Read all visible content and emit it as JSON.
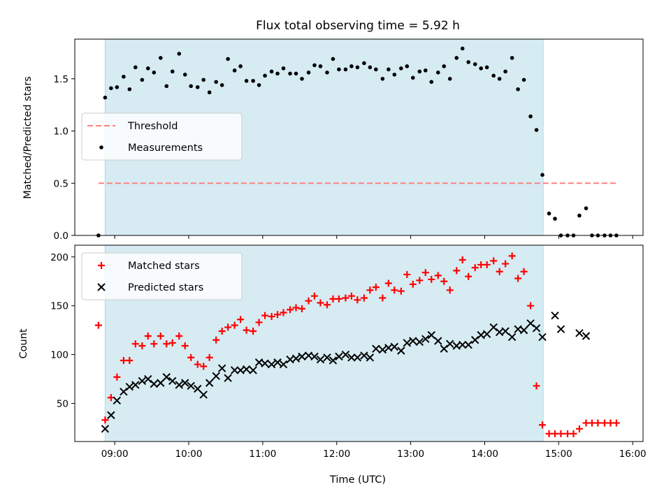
{
  "chart_data": [
    {
      "type": "scatter",
      "title": "Flux total observing time = 5.92 h",
      "xlabel": "",
      "ylabel": "Matched/Predicted stars",
      "xlim_hours": [
        8.46,
        16.14
      ],
      "ylim": [
        0,
        1.88
      ],
      "yticks": [
        "0.0",
        "0.5",
        "1.0",
        "1.5"
      ],
      "shaded_span_hours": [
        8.87,
        14.79
      ],
      "shade_color": "#add8e6",
      "grid": false,
      "legend_position": "center-left",
      "series": [
        {
          "name": "Threshold",
          "kind": "dashed-line",
          "color": "#ff7f7f",
          "x_hours": [
            8.78,
            15.78
          ],
          "y": [
            0.5,
            0.5
          ]
        },
        {
          "name": "Measurements",
          "kind": "dot",
          "color": "#000000",
          "x_hours": [
            8.78,
            8.87,
            8.95,
            9.03,
            9.12,
            9.2,
            9.28,
            9.37,
            9.45,
            9.53,
            9.62,
            9.7,
            9.78,
            9.87,
            9.95,
            10.03,
            10.12,
            10.2,
            10.28,
            10.37,
            10.45,
            10.53,
            10.62,
            10.7,
            10.78,
            10.87,
            10.95,
            11.03,
            11.12,
            11.2,
            11.28,
            11.37,
            11.45,
            11.53,
            11.62,
            11.7,
            11.78,
            11.87,
            11.95,
            12.03,
            12.12,
            12.2,
            12.28,
            12.37,
            12.45,
            12.53,
            12.62,
            12.7,
            12.78,
            12.87,
            12.95,
            13.03,
            13.12,
            13.2,
            13.28,
            13.37,
            13.45,
            13.53,
            13.62,
            13.7,
            13.78,
            13.87,
            13.95,
            14.03,
            14.12,
            14.2,
            14.28,
            14.37,
            14.45,
            14.53,
            14.62,
            14.7,
            14.78,
            14.87,
            14.95,
            15.03,
            15.12,
            15.2,
            15.28,
            15.37,
            15.45,
            15.53,
            15.62,
            15.7,
            15.78
          ],
          "y": [
            0.0,
            1.32,
            1.41,
            1.42,
            1.52,
            1.4,
            1.61,
            1.49,
            1.6,
            1.56,
            1.7,
            1.43,
            1.57,
            1.74,
            1.54,
            1.43,
            1.42,
            1.49,
            1.37,
            1.47,
            1.44,
            1.69,
            1.58,
            1.62,
            1.48,
            1.48,
            1.44,
            1.53,
            1.57,
            1.55,
            1.6,
            1.55,
            1.55,
            1.5,
            1.56,
            1.63,
            1.62,
            1.56,
            1.69,
            1.59,
            1.59,
            1.62,
            1.61,
            1.65,
            1.61,
            1.59,
            1.5,
            1.59,
            1.54,
            1.6,
            1.62,
            1.51,
            1.57,
            1.58,
            1.47,
            1.56,
            1.62,
            1.5,
            1.7,
            1.79,
            1.66,
            1.64,
            1.6,
            1.61,
            1.53,
            1.5,
            1.57,
            1.7,
            1.4,
            1.49,
            1.14,
            1.01,
            0.58,
            0.21,
            0.16,
            0.0,
            0.0,
            0.0,
            0.19,
            0.26,
            0.0,
            0.0,
            0.0,
            0.0,
            0.0
          ]
        }
      ]
    },
    {
      "type": "scatter",
      "title": "",
      "xlabel": "Time (UTC)",
      "ylabel": "Count",
      "xlim_hours": [
        8.46,
        16.14
      ],
      "ylim": [
        11,
        212
      ],
      "yticks": [
        "50",
        "100",
        "150",
        "200"
      ],
      "xticks": [
        "09:00",
        "10:00",
        "11:00",
        "12:00",
        "13:00",
        "14:00",
        "15:00",
        "16:00"
      ],
      "shaded_span_hours": [
        8.87,
        14.79
      ],
      "shade_color": "#add8e6",
      "grid": false,
      "legend_position": "upper-left",
      "series": [
        {
          "name": "Matched stars",
          "marker": "plus",
          "color": "#ff0000",
          "x_hours": [
            8.78,
            8.87,
            8.95,
            9.03,
            9.12,
            9.2,
            9.28,
            9.37,
            9.45,
            9.53,
            9.62,
            9.7,
            9.78,
            9.87,
            9.95,
            10.03,
            10.12,
            10.2,
            10.28,
            10.37,
            10.45,
            10.53,
            10.62,
            10.7,
            10.78,
            10.87,
            10.95,
            11.03,
            11.12,
            11.2,
            11.28,
            11.37,
            11.45,
            11.53,
            11.62,
            11.7,
            11.78,
            11.87,
            11.95,
            12.03,
            12.12,
            12.2,
            12.28,
            12.37,
            12.45,
            12.53,
            12.62,
            12.7,
            12.78,
            12.87,
            12.95,
            13.03,
            13.12,
            13.2,
            13.28,
            13.37,
            13.45,
            13.53,
            13.62,
            13.7,
            13.78,
            13.87,
            13.95,
            14.03,
            14.12,
            14.2,
            14.28,
            14.37,
            14.45,
            14.53,
            14.62,
            14.7,
            14.78,
            14.87,
            14.95,
            15.03,
            15.12,
            15.2,
            15.28,
            15.37,
            15.45,
            15.53,
            15.62,
            15.7,
            15.78
          ],
          "y": [
            130,
            33,
            56,
            77,
            94,
            94,
            111,
            109,
            119,
            111,
            119,
            111,
            112,
            119,
            109,
            97,
            90,
            88,
            97,
            115,
            124,
            128,
            130,
            136,
            125,
            124,
            133,
            140,
            139,
            141,
            143,
            146,
            148,
            147,
            155,
            160,
            153,
            151,
            157,
            157,
            158,
            160,
            156,
            158,
            166,
            169,
            158,
            173,
            166,
            165,
            182,
            172,
            176,
            184,
            177,
            181,
            175,
            166,
            186,
            197,
            180,
            189,
            192,
            192,
            196,
            185,
            193,
            201,
            178,
            185,
            150,
            68,
            28,
            19,
            19,
            19,
            19,
            19,
            24,
            30,
            30,
            30,
            30,
            30,
            30
          ]
        },
        {
          "name": "Predicted stars",
          "marker": "x",
          "color": "#000000",
          "x_hours": [
            8.87,
            8.95,
            9.03,
            9.12,
            9.2,
            9.28,
            9.37,
            9.45,
            9.53,
            9.62,
            9.7,
            9.78,
            9.87,
            9.95,
            10.03,
            10.12,
            10.2,
            10.28,
            10.37,
            10.45,
            10.53,
            10.62,
            10.7,
            10.78,
            10.87,
            10.95,
            11.03,
            11.12,
            11.2,
            11.28,
            11.37,
            11.45,
            11.53,
            11.62,
            11.7,
            11.78,
            11.87,
            11.95,
            12.03,
            12.12,
            12.2,
            12.28,
            12.37,
            12.45,
            12.53,
            12.62,
            12.7,
            12.78,
            12.87,
            12.95,
            13.03,
            13.12,
            13.2,
            13.28,
            13.37,
            13.45,
            13.53,
            13.62,
            13.7,
            13.78,
            13.87,
            13.95,
            14.03,
            14.12,
            14.2,
            14.28,
            14.37,
            14.45,
            14.53,
            14.62,
            14.7,
            14.78,
            14.95,
            15.03,
            15.28,
            15.37
          ],
          "y": [
            24,
            38,
            53,
            62,
            67,
            69,
            73,
            75,
            70,
            71,
            77,
            73,
            69,
            71,
            68,
            65,
            59,
            71,
            78,
            86,
            76,
            84,
            84,
            85,
            84,
            92,
            91,
            90,
            92,
            90,
            95,
            96,
            98,
            99,
            98,
            95,
            97,
            94,
            98,
            100,
            97,
            97,
            99,
            97,
            106,
            105,
            107,
            108,
            104,
            112,
            114,
            113,
            116,
            120,
            114,
            106,
            111,
            109,
            110,
            110,
            115,
            120,
            121,
            128,
            123,
            124,
            118,
            126,
            125,
            132,
            127,
            118,
            140,
            126,
            122,
            119
          ]
        }
      ]
    }
  ]
}
